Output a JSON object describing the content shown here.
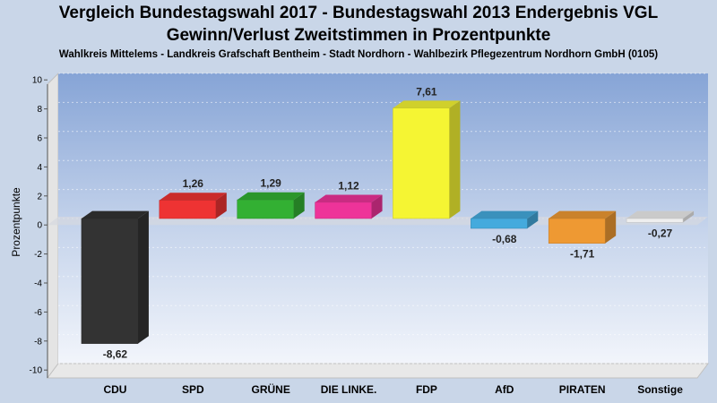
{
  "chart_data": {
    "type": "bar",
    "title": "Vergleich Bundestagswahl 2017 - Bundestagswahl 2013 Endergebnis VGL",
    "title_line2": "Gewinn/Verlust Zweitstimmen in Prozentpunkte",
    "subtitle": "Wahlkreis Mittelems - Landkreis Grafschaft Bentheim - Stadt Nordhorn - Wahlbezirk Pflegezentrum Nordhorn GmbH (0105)",
    "xlabel": "",
    "ylabel": "Prozentpunkte",
    "ylim": [
      -10,
      10
    ],
    "yticks": [
      10,
      8,
      6,
      4,
      2,
      0,
      -2,
      -4,
      -6,
      -8,
      -10
    ],
    "grid": true,
    "categories": [
      "CDU",
      "SPD",
      "GRÜNE",
      "DIE LINKE.",
      "FDP",
      "AfD",
      "PIRATEN",
      "Sonstige"
    ],
    "values": [
      -8.62,
      1.26,
      1.29,
      1.12,
      7.61,
      -0.68,
      -1.71,
      -0.27
    ],
    "value_labels": [
      "-8,62",
      "1,26",
      "1,29",
      "1,12",
      "7,61",
      "-0,68",
      "-1,71",
      "-0,27"
    ],
    "colors": [
      "#333333",
      "#ee3333",
      "#33b033",
      "#ee3399",
      "#f5f533",
      "#44aadd",
      "#ee9933",
      "#eeeeee"
    ]
  }
}
